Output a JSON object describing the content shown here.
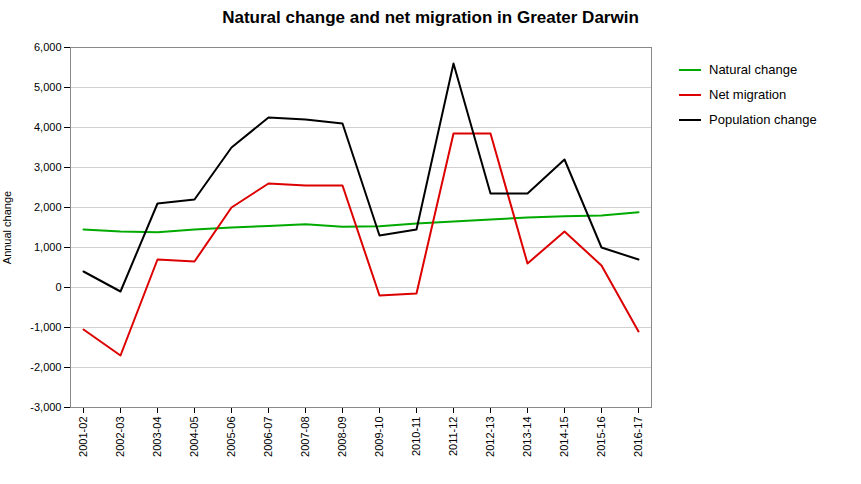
{
  "chart_data": {
    "type": "line",
    "title": "Natural change and net migration in Greater Darwin",
    "ylabel": "Annual change",
    "categories": [
      "2001-02",
      "2002-03",
      "2003-04",
      "2004-05",
      "2005-06",
      "2006-07",
      "2007-08",
      "2008-09",
      "2009-10",
      "2010-11",
      "2011-12",
      "2012-13",
      "2013-14",
      "2014-15",
      "2015-16",
      "2016-17"
    ],
    "series": [
      {
        "name": "Natural change",
        "color": "#00aa00",
        "values": [
          1450,
          1400,
          1380,
          1450,
          1500,
          1540,
          1580,
          1520,
          1530,
          1600,
          1650,
          1700,
          1750,
          1780,
          1800,
          1880
        ]
      },
      {
        "name": "Net migration",
        "color": "#dd0000",
        "values": [
          -1050,
          -1700,
          700,
          650,
          2000,
          2600,
          2550,
          2550,
          -200,
          -150,
          3850,
          3850,
          600,
          1400,
          550,
          -1100
        ]
      },
      {
        "name": "Population change",
        "color": "#000000",
        "values": [
          400,
          -100,
          2100,
          2200,
          3500,
          4250,
          4200,
          4100,
          1300,
          1450,
          5600,
          2350,
          2350,
          3200,
          1000,
          700
        ]
      }
    ],
    "ylim": [
      -3000,
      6000
    ],
    "yticks": [
      {
        "value": -3000,
        "label": "-3,000"
      },
      {
        "value": -2000,
        "label": "-2,000"
      },
      {
        "value": -1000,
        "label": "-1,000"
      },
      0,
      {
        "value": 1000,
        "label": "1,000"
      },
      {
        "value": 2000,
        "label": "2,000"
      },
      {
        "value": 3000,
        "label": "3,000"
      },
      {
        "value": 4000,
        "label": "4,000"
      },
      {
        "value": 5000,
        "label": "5,000"
      },
      {
        "value": 6000,
        "label": "6,000"
      }
    ],
    "grid": true,
    "legend": "right"
  }
}
